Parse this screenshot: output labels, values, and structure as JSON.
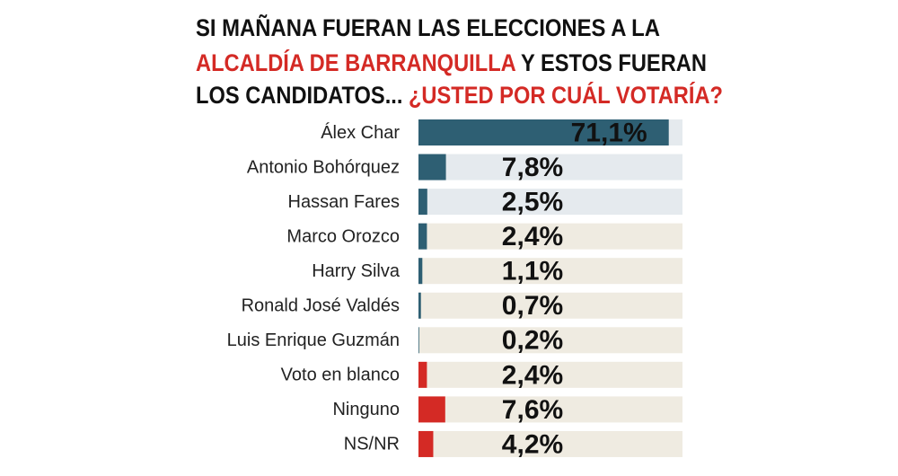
{
  "chart_data": {
    "type": "bar",
    "orientation": "horizontal",
    "title_lines": [
      [
        {
          "text": "SI MAÑANA FUERAN LAS ELECCIONES A LA",
          "color": "#111111"
        }
      ],
      [
        {
          "text": "ALCALDÍA DE BARRANQUILLA",
          "color": "#d42a25"
        },
        {
          "text": " Y ESTOS FUERAN",
          "color": "#111111"
        }
      ],
      [
        {
          "text": "LOS CANDIDATOS... ",
          "color": "#111111"
        },
        {
          "text": "¿USTED POR CUÁL VOTARÍA?",
          "color": "#d42a25"
        }
      ]
    ],
    "categories": [
      "Álex Char",
      "Antonio Bohórquez",
      "Hassan Fares",
      "Marco Orozco",
      "Harry Silva",
      "Ronald José Valdés",
      "Luis Enrique Guzmán",
      "Voto en blanco",
      "Ninguno",
      "NS/NR"
    ],
    "values": [
      71.1,
      7.8,
      2.5,
      2.4,
      1.1,
      0.7,
      0.2,
      2.4,
      7.6,
      4.2
    ],
    "value_labels": [
      "71,1%",
      "7,8%",
      "2,5%",
      "2,4%",
      "1,1%",
      "0,7%",
      "0,2%",
      "2,4%",
      "7,6%",
      "4,2%"
    ],
    "colors": [
      "#2e5f73",
      "#2e5f73",
      "#2e5f73",
      "#2e5f73",
      "#2e5f73",
      "#2e5f73",
      "#2e5f73",
      "#d42a25",
      "#d42a25",
      "#d42a25"
    ],
    "track_colors": [
      "#e5eaee",
      "#e5eaee",
      "#e5eaee",
      "#efebe1",
      "#efebe1",
      "#efebe1",
      "#efebe1",
      "#efebe1",
      "#efebe1",
      "#efebe1"
    ],
    "xlim": [
      0,
      75
    ]
  }
}
